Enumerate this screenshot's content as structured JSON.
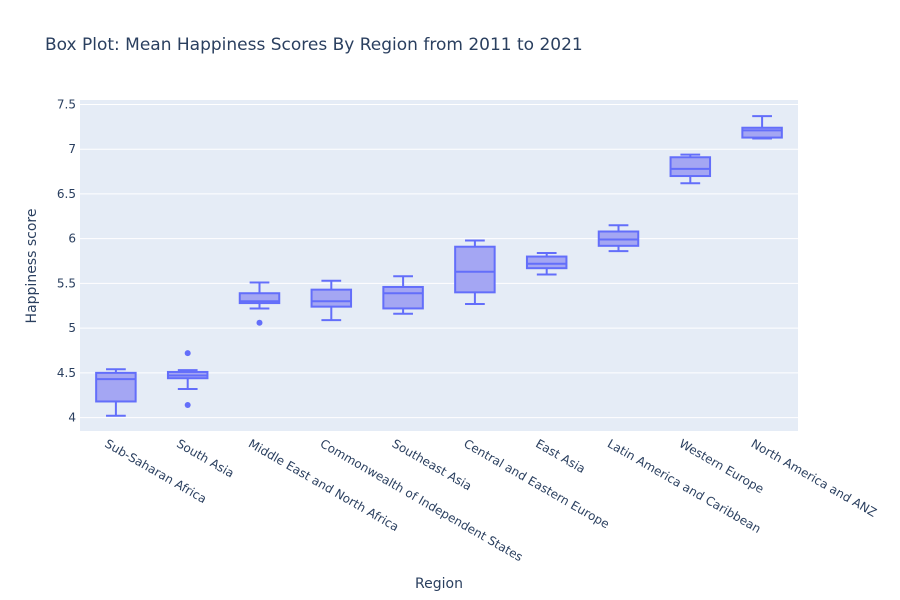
{
  "chart_data": {
    "type": "box",
    "title": "Box Plot: Mean Happiness Scores By Region from 2011 to 2021",
    "xlabel": "Region",
    "ylabel": "Happiness score",
    "ylim": [
      3.85,
      7.55
    ],
    "yticks": [
      "4",
      "4.5",
      "5",
      "5.5",
      "6",
      "6.5",
      "7",
      "7.5"
    ],
    "grid": true,
    "colors": {
      "box_fill": "#a4a6f3",
      "box_line": "#636efa",
      "plot_bg": "#e5ecf6",
      "grid": "#ffffff",
      "text": "#2a3f5f"
    },
    "categories": [
      "Sub-Saharan Africa",
      "South Asia",
      "Middle East and North Africa",
      "Commonwealth of Independent States",
      "Southeast Asia",
      "Central and Eastern Europe",
      "East Asia",
      "Latin America and Caribbean",
      "Western Europe",
      "North America and ANZ"
    ],
    "boxes": [
      {
        "min": 4.02,
        "q1": 4.18,
        "median": 4.43,
        "q3": 4.5,
        "max": 4.54,
        "outliers": []
      },
      {
        "min": 4.32,
        "q1": 4.44,
        "median": 4.47,
        "q3": 4.51,
        "max": 4.53,
        "outliers": [
          4.14,
          4.72
        ]
      },
      {
        "min": 5.22,
        "q1": 5.28,
        "median": 5.3,
        "q3": 5.39,
        "max": 5.51,
        "outliers": [
          5.06
        ]
      },
      {
        "min": 5.09,
        "q1": 5.24,
        "median": 5.3,
        "q3": 5.43,
        "max": 5.53,
        "outliers": []
      },
      {
        "min": 5.16,
        "q1": 5.22,
        "median": 5.39,
        "q3": 5.46,
        "max": 5.58,
        "outliers": []
      },
      {
        "min": 5.27,
        "q1": 5.4,
        "median": 5.63,
        "q3": 5.91,
        "max": 5.98,
        "outliers": []
      },
      {
        "min": 5.6,
        "q1": 5.67,
        "median": 5.72,
        "q3": 5.8,
        "max": 5.84,
        "outliers": []
      },
      {
        "min": 5.86,
        "q1": 5.92,
        "median": 5.99,
        "q3": 6.08,
        "max": 6.15,
        "outliers": []
      },
      {
        "min": 6.62,
        "q1": 6.7,
        "median": 6.78,
        "q3": 6.91,
        "max": 6.94,
        "outliers": []
      },
      {
        "min": 7.12,
        "q1": 7.13,
        "median": 7.21,
        "q3": 7.24,
        "max": 7.37,
        "outliers": []
      }
    ]
  }
}
